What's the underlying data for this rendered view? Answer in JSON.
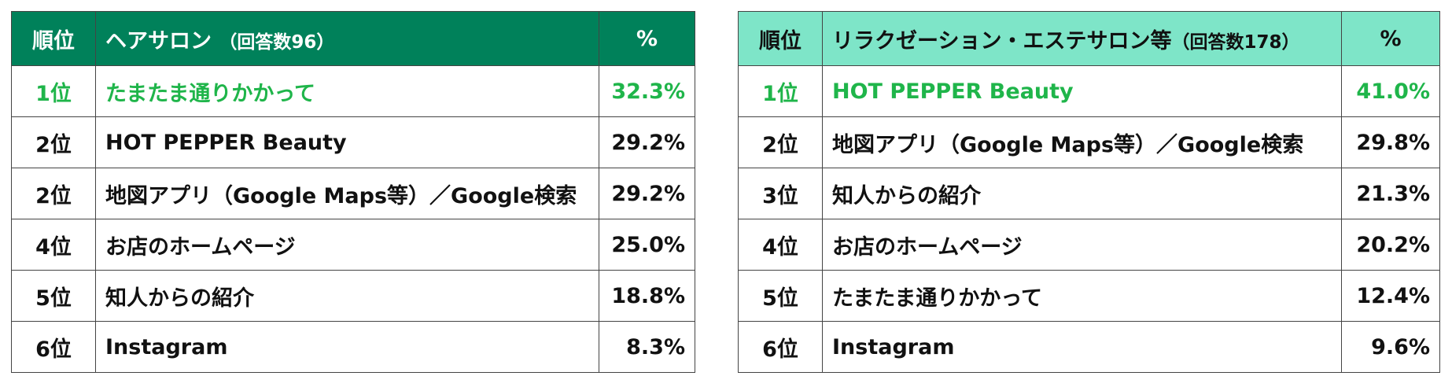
{
  "colors": {
    "left_header_bg": "#00815a",
    "right_header_bg": "#7ee5c8",
    "highlight_text": "#1fb54a"
  },
  "left_table": {
    "header": {
      "rank": "順位",
      "title": "ヘアサロン",
      "count": "（回答数96）",
      "pct": "%"
    },
    "rows": [
      {
        "rank": "1位",
        "name": "たまたま通りかかって",
        "pct": "32.3%"
      },
      {
        "rank": "2位",
        "name": "HOT PEPPER Beauty",
        "pct": "29.2%"
      },
      {
        "rank": "2位",
        "name": "地図アプリ（Google Maps等）／Google検索",
        "pct": "29.2%"
      },
      {
        "rank": "4位",
        "name": "お店のホームページ",
        "pct": "25.0%"
      },
      {
        "rank": "5位",
        "name": "知人からの紹介",
        "pct": "18.8%"
      },
      {
        "rank": "6位",
        "name": "Instagram",
        "pct": "8.3%"
      }
    ]
  },
  "right_table": {
    "header": {
      "rank": "順位",
      "title": "リラクゼーション・エステサロン等",
      "count": "（回答数178）",
      "pct": "%"
    },
    "rows": [
      {
        "rank": "1位",
        "name": "HOT PEPPER Beauty",
        "pct": "41.0%"
      },
      {
        "rank": "2位",
        "name": "地図アプリ（Google Maps等）／Google検索",
        "pct": "29.8%"
      },
      {
        "rank": "3位",
        "name": "知人からの紹介",
        "pct": "21.3%"
      },
      {
        "rank": "4位",
        "name": "お店のホームページ",
        "pct": "20.2%"
      },
      {
        "rank": "5位",
        "name": "たまたま通りかかって",
        "pct": "12.4%"
      },
      {
        "rank": "6位",
        "name": "Instagram",
        "pct": "9.6%"
      }
    ]
  }
}
